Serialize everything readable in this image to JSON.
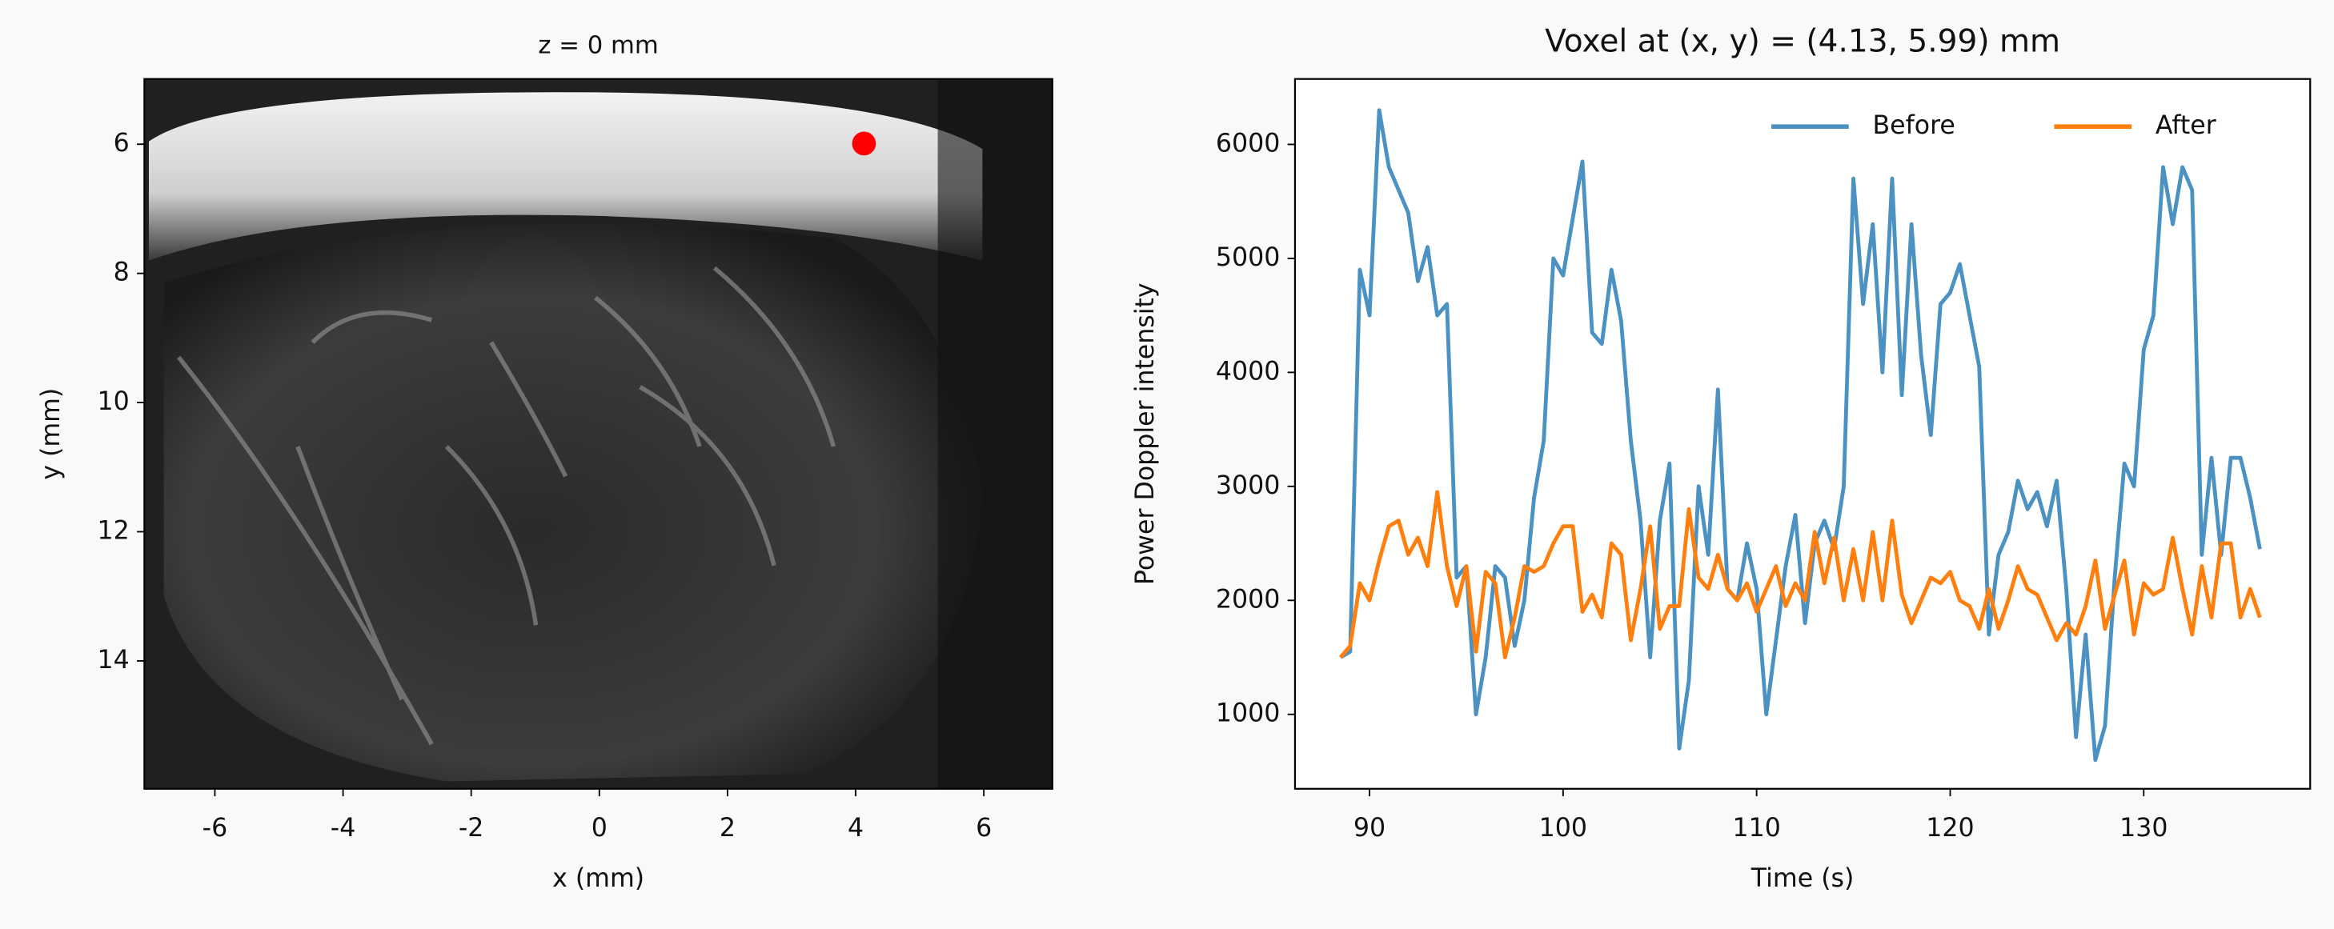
{
  "chart_data": [
    {
      "type": "image",
      "title": "z = 0 mm",
      "xlabel": "x (mm)",
      "ylabel": "y (mm)",
      "xlim": [
        -7.1,
        7.07
      ],
      "ylim": [
        4.99,
        15.98
      ],
      "y_inverted": true,
      "xticks": [
        -6,
        -4,
        -2,
        0,
        2,
        4,
        6
      ],
      "yticks": [
        6,
        8,
        10,
        12,
        14
      ],
      "points": {
        "x": [
          4.13
        ],
        "y": [
          5.99
        ],
        "color": "#ff0000"
      }
    },
    {
      "type": "line",
      "title": "Voxel at (x, y) = (4.13, 5.99) mm",
      "xlabel": "Time (s)",
      "ylabel": "Power Doppler intensity",
      "xlim": [
        86.15,
        138.6
      ],
      "ylim": [
        347,
        6574
      ],
      "xticks": [
        90,
        100,
        110,
        120,
        130
      ],
      "yticks": [
        1000,
        2000,
        3000,
        4000,
        5000,
        6000
      ],
      "legend": "upper right",
      "x": [
        88.5,
        89,
        89.5,
        90,
        90.5,
        91,
        91.5,
        92,
        92.5,
        93,
        93.5,
        94,
        94.5,
        95,
        95.5,
        96,
        96.5,
        97,
        97.5,
        98,
        98.5,
        99,
        99.5,
        100,
        100.5,
        101,
        101.5,
        102,
        102.5,
        103,
        103.5,
        104,
        104.5,
        105,
        105.5,
        106,
        106.5,
        107,
        107.5,
        108,
        108.5,
        109,
        109.5,
        110,
        110.5,
        111,
        111.5,
        112,
        112.5,
        113,
        113.5,
        114,
        114.5,
        115,
        115.5,
        116,
        116.5,
        117,
        117.5,
        118,
        118.5,
        119,
        119.5,
        120,
        120.5,
        121,
        121.5,
        122,
        122.5,
        123,
        123.5,
        124,
        124.5,
        125,
        125.5,
        126,
        126.5,
        127,
        127.5,
        128,
        128.5,
        129,
        129.5,
        130,
        130.5,
        131,
        131.5,
        132,
        132.5,
        133,
        133.5,
        134,
        134.5,
        135,
        135.5,
        136
      ],
      "series": [
        {
          "name": "Before",
          "color": "#4b91c2",
          "values": [
            1500,
            1550,
            4900,
            4500,
            6300,
            5800,
            5600,
            5400,
            4800,
            5100,
            4500,
            4600,
            2200,
            2300,
            1000,
            1500,
            2300,
            2200,
            1600,
            2000,
            2900,
            3400,
            5000,
            4850,
            5350,
            5850,
            4350,
            4250,
            4900,
            4450,
            3400,
            2700,
            1500,
            2700,
            3200,
            700,
            1300,
            3000,
            2400,
            3850,
            2100,
            2000,
            2500,
            2100,
            1000,
            1650,
            2300,
            2750,
            1800,
            2500,
            2700,
            2450,
            3000,
            5700,
            4600,
            5300,
            4000,
            5700,
            3800,
            5300,
            4150,
            3450,
            4600,
            4700,
            4950,
            4500,
            4050,
            1700,
            2400,
            2600,
            3050,
            2800,
            2950,
            2650,
            3050,
            2100,
            800,
            1700,
            600,
            900,
            2200,
            3200,
            3000,
            4200,
            4500,
            5800,
            5300,
            5800,
            5600,
            2400,
            3250,
            2400,
            3250,
            3250,
            2900,
            2450
          ]
        },
        {
          "name": "After",
          "color": "#ff7f0e",
          "values": [
            1500,
            1600,
            2150,
            2000,
            2350,
            2650,
            2700,
            2400,
            2550,
            2300,
            2950,
            2300,
            1950,
            2300,
            1550,
            2250,
            2150,
            1500,
            1850,
            2300,
            2250,
            2300,
            2500,
            2650,
            2650,
            1900,
            2050,
            1850,
            2500,
            2400,
            1650,
            2100,
            2650,
            1750,
            1950,
            1950,
            2800,
            2200,
            2100,
            2400,
            2100,
            2000,
            2150,
            1900,
            2100,
            2300,
            1950,
            2150,
            2000,
            2600,
            2150,
            2550,
            2000,
            2450,
            2000,
            2600,
            2000,
            2700,
            2050,
            1800,
            2000,
            2200,
            2150,
            2250,
            2000,
            1950,
            1750,
            2100,
            1750,
            2000,
            2300,
            2100,
            2050,
            1850,
            1650,
            1800,
            1700,
            1950,
            2350,
            1750,
            2050,
            2350,
            1700,
            2150,
            2050,
            2100,
            2550,
            2100,
            1700,
            2300,
            1850,
            2500,
            2500,
            1850,
            2100,
            1850
          ]
        }
      ]
    }
  ]
}
